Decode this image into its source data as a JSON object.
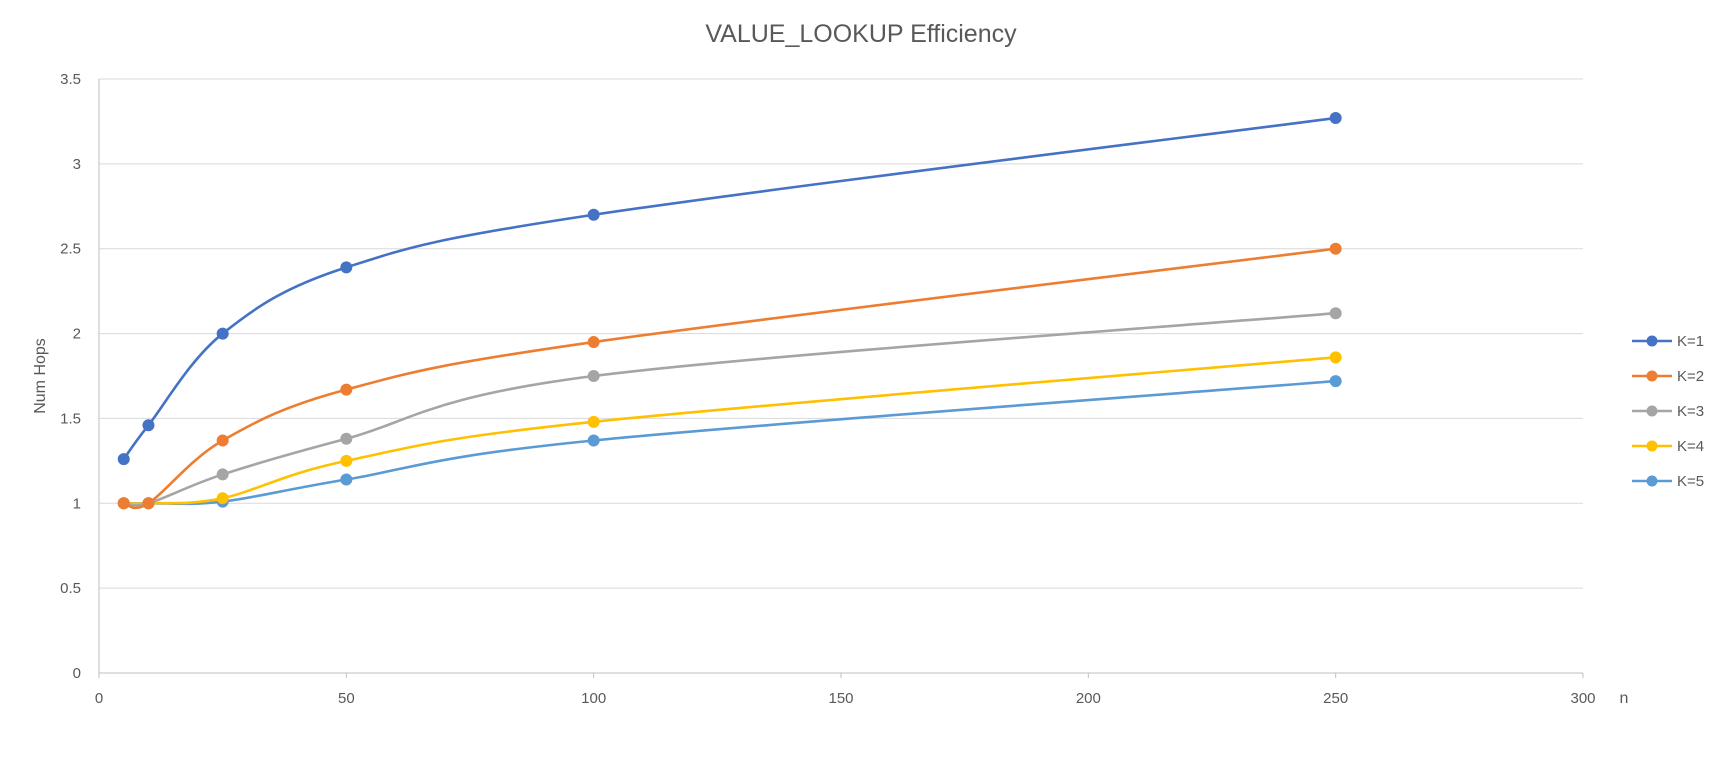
{
  "chart_data": {
    "type": "scatter",
    "title": "VALUE_LOOKUP  Efficiency",
    "xlabel": "n",
    "ylabel": "Num Hops",
    "xlim": [
      0,
      300
    ],
    "ylim": [
      0,
      3.5
    ],
    "xticks": [
      0,
      50,
      100,
      150,
      200,
      250,
      300
    ],
    "yticks": [
      0,
      0.5,
      1,
      1.5,
      2,
      2.5,
      3,
      3.5
    ],
    "grid": "horizontal",
    "smooth_lines": true,
    "legend_position": "right",
    "x": [
      5,
      10,
      25,
      50,
      100,
      250
    ],
    "series": [
      {
        "name": "K=1",
        "color": "#4472C4",
        "values": [
          1.26,
          1.46,
          2.0,
          2.39,
          2.7,
          3.27
        ]
      },
      {
        "name": "K=2",
        "color": "#ED7D31",
        "values": [
          1.0,
          1.0,
          1.37,
          1.67,
          1.95,
          2.5
        ]
      },
      {
        "name": "K=3",
        "color": "#A5A5A5",
        "values": [
          1.0,
          1.0,
          1.17,
          1.38,
          1.75,
          2.12
        ]
      },
      {
        "name": "K=4",
        "color": "#FFC000",
        "values": [
          1.0,
          1.0,
          1.03,
          1.25,
          1.48,
          1.86
        ]
      },
      {
        "name": "K=5",
        "color": "#5B9BD5",
        "values": [
          1.0,
          1.0,
          1.01,
          1.14,
          1.37,
          1.72
        ]
      }
    ]
  }
}
